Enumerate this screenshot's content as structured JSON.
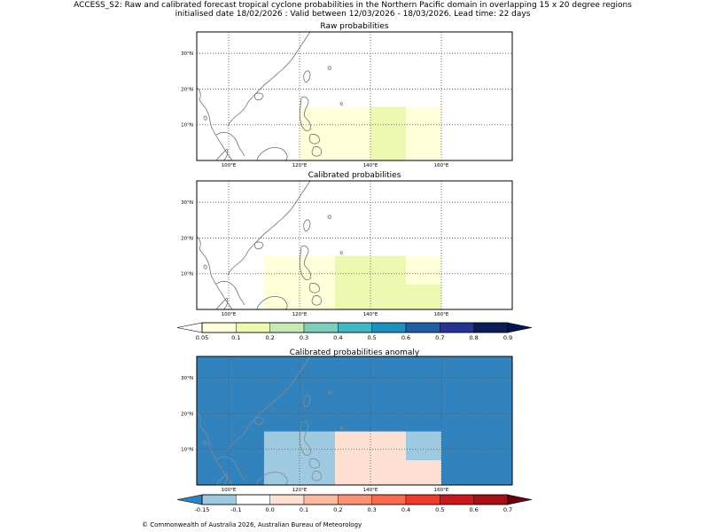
{
  "header": {
    "title_line1": "ACCESS_S2: Raw and calibrated forecast tropical cyclone probabilities in the Northern Pacific domain in overlapping 15 x 20 degree regions",
    "title_line2": "initialised date 18/02/2026 :  Valid between 12/03/2026 - 18/03/2026. Lead time: 22 days"
  },
  "footer": {
    "copyright": "© Commonwealth of Australia 2026, Australian Bureau of Meteorology"
  },
  "colors": {
    "land_outline": "#707070",
    "anomaly_land_outline": "#8a8a8a",
    "grid": "#555555",
    "prob_scale": [
      "#ffffd9",
      "#edf8b1",
      "#c7e9b4",
      "#7fcdbb",
      "#41b6c4",
      "#1d91c0",
      "#225ea8",
      "#253494",
      "#081d58",
      "#041650"
    ],
    "prob_under": "#ffffff",
    "anom_scale": [
      "#9ecae1",
      "#ffffff",
      "#fee0d2",
      "#fcbba1",
      "#fc9272",
      "#fb6a4a",
      "#ef3b2c",
      "#cb181d",
      "#a50f15"
    ],
    "anom_under": "#3182bd",
    "anom_over": "#67000d"
  },
  "chart_data": [
    {
      "type": "heatmap",
      "id": "raw",
      "title": "Raw probabilities",
      "xlim": [
        91,
        180
      ],
      "ylim": [
        0,
        36
      ],
      "xticks": [
        100,
        120,
        140,
        160
      ],
      "xtick_labels": [
        "100°E",
        "120°E",
        "140°E",
        "160°E"
      ],
      "yticks": [
        10,
        20,
        30
      ],
      "ytick_labels": [
        "10°N",
        "20°N",
        "30°N"
      ],
      "grid": true,
      "background_value": 0,
      "cells": [
        {
          "lon": [
            120,
            130
          ],
          "lat": [
            0,
            15
          ],
          "value": 0.05
        },
        {
          "lon": [
            130,
            140
          ],
          "lat": [
            0,
            15
          ],
          "value": 0.05
        },
        {
          "lon": [
            140,
            150
          ],
          "lat": [
            0,
            15
          ],
          "value": 0.1
        },
        {
          "lon": [
            150,
            160
          ],
          "lat": [
            0,
            15
          ],
          "value": 0.05
        }
      ]
    },
    {
      "type": "heatmap",
      "id": "calibrated",
      "title": "Calibrated probabilities",
      "xlim": [
        91,
        180
      ],
      "ylim": [
        0,
        36
      ],
      "xticks": [
        100,
        120,
        140,
        160
      ],
      "xtick_labels": [
        "100°E",
        "120°E",
        "140°E",
        "160°E"
      ],
      "yticks": [
        10,
        20,
        30
      ],
      "ytick_labels": [
        "10°N",
        "20°N",
        "30°N"
      ],
      "grid": true,
      "background_value": 0,
      "cells": [
        {
          "lon": [
            110,
            130
          ],
          "lat": [
            0,
            15
          ],
          "value": 0.05
        },
        {
          "lon": [
            130,
            150
          ],
          "lat": [
            0,
            15
          ],
          "value": 0.1
        },
        {
          "lon": [
            150,
            160
          ],
          "lat": [
            7,
            15
          ],
          "value": 0.05
        },
        {
          "lon": [
            150,
            160
          ],
          "lat": [
            0,
            7
          ],
          "value": 0.1
        }
      ]
    },
    {
      "type": "heatmap",
      "id": "anomaly",
      "title": "Calibrated probabilities anomaly",
      "xlim": [
        91,
        180
      ],
      "ylim": [
        0,
        36
      ],
      "xticks": [
        100,
        120,
        140,
        160
      ],
      "xtick_labels": [
        "100°E",
        "120°E",
        "140°E",
        "160°E"
      ],
      "yticks": [
        10,
        20,
        30
      ],
      "ytick_labels": [
        "10°N",
        "20°N",
        "30°N"
      ],
      "grid": true,
      "background_value": -0.2,
      "cells": [
        {
          "lon": [
            110,
            130
          ],
          "lat": [
            0,
            15
          ],
          "value": -0.12
        },
        {
          "lon": [
            130,
            150
          ],
          "lat": [
            0,
            15
          ],
          "value": 0.0
        },
        {
          "lon": [
            150,
            160
          ],
          "lat": [
            7,
            15
          ],
          "value": -0.12
        },
        {
          "lon": [
            150,
            160
          ],
          "lat": [
            0,
            7
          ],
          "value": 0.0
        }
      ]
    },
    {
      "type": "colorbar",
      "id": "prob_colorbar",
      "for": "raw and calibrated probabilities",
      "bounds": [
        0.05,
        0.1,
        0.2,
        0.3,
        0.4,
        0.5,
        0.6,
        0.7,
        0.8,
        0.9
      ],
      "labels": [
        "0.05",
        "0.1",
        "0.2",
        "0.3",
        "0.4",
        "0.5",
        "0.6",
        "0.7",
        "0.8",
        "0.9"
      ],
      "extend": "both"
    },
    {
      "type": "colorbar",
      "id": "anom_colorbar",
      "for": "calibrated probabilities anomaly",
      "bounds": [
        -0.15,
        -0.1,
        0.0,
        0.1,
        0.2,
        0.3,
        0.4,
        0.5,
        0.6,
        0.7
      ],
      "labels": [
        "-0.15",
        "-0.1",
        "0.0",
        "0.1",
        "0.2",
        "0.3",
        "0.4",
        "0.5",
        "0.6",
        "0.7"
      ],
      "extend": "both"
    }
  ]
}
